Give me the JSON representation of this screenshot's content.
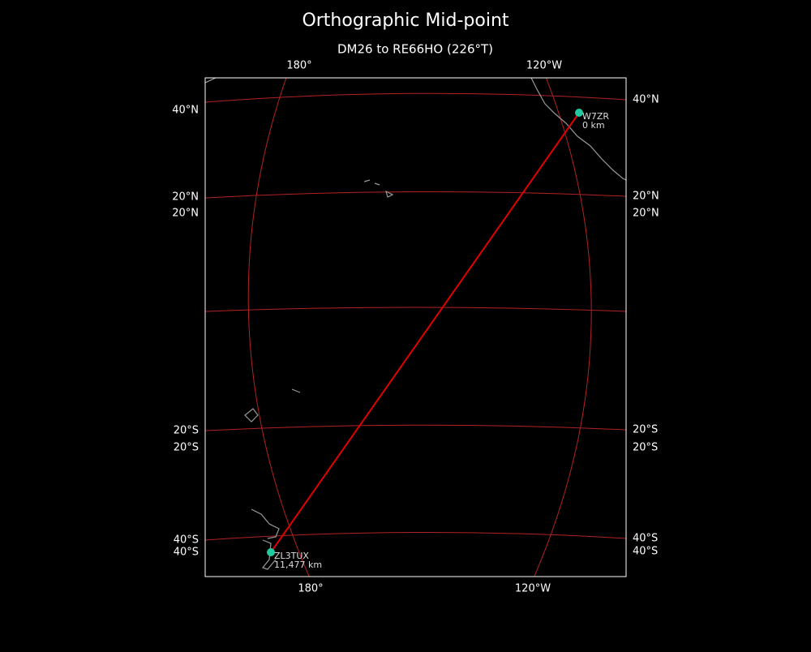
{
  "header": {
    "title": "Orthographic Mid-point",
    "subtitle": "DM26 to RE66HO (226°T)"
  },
  "graticule": {
    "top": [
      "180°",
      "120°W"
    ],
    "bottom": [
      "180°",
      "120°W"
    ],
    "left": [
      "40°N",
      "20°N",
      "20°N",
      "20°S",
      "20°S",
      "40°S",
      "40°S"
    ],
    "right": [
      "40°N",
      "20°N",
      "20°N",
      "20°S",
      "20°S",
      "40°S",
      "40°S"
    ]
  },
  "stations": [
    {
      "name": "W7ZR",
      "distance": "0 km"
    },
    {
      "name": "ZL3TUX",
      "distance": "11,477 km"
    }
  ]
}
